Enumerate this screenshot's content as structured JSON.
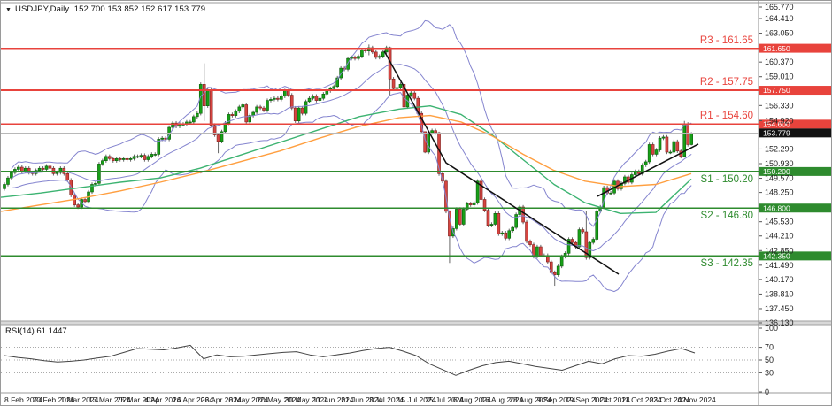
{
  "info_bar": {
    "arrow": "▼",
    "symbol": "USDJPY,Daily",
    "ohlc": "152.700 153.852 152.617 153.779"
  },
  "colors": {
    "bull": "#17a017",
    "bull_border": "#0a5c0a",
    "bear": "#d64541",
    "bear_border": "#7e1f1c",
    "wick": "#666666",
    "bollinger": "#8585cf",
    "ma_fast": "#3cb371",
    "ma_slow": "#ff9f40",
    "resistance": "#e8433c",
    "support": "#2e8b2e",
    "trendline": "#111111",
    "current_price_line": "#b8b8b8",
    "current_price_badge": "#111111",
    "rsi_line": "#444444",
    "axis_text": "#222222"
  },
  "chart_data": {
    "type": "candlestick",
    "symbol": "USDJPY",
    "timeframe": "Daily",
    "last_ohlc": {
      "open": 152.7,
      "high": 153.852,
      "low": 152.617,
      "close": 153.779
    },
    "current_price": {
      "value": 153.779,
      "axis_label": "153.779"
    },
    "price_axis": {
      "visible_range": [
        136.13,
        165.77
      ],
      "ticks": [
        "165.770",
        "164.410",
        "163.050",
        "160.370",
        "159.010",
        "156.330",
        "154.920",
        "152.290",
        "150.930",
        "149.570",
        "148.250",
        "145.530",
        "144.210",
        "142.850",
        "141.490",
        "140.170",
        "138.810",
        "137.450",
        "136.130"
      ]
    },
    "time_axis": {
      "labels": [
        "8 Feb 2024",
        "20 Feb 2024",
        "1 Mar 2024",
        "13 Mar 2024",
        "25 Mar 2024",
        "4 Apr 2024",
        "16 Apr 2024",
        "26 Apr 2024",
        "8 May 2024",
        "20 May 2024",
        "30 May 2024",
        "11 Jun 2024",
        "21 Jun 2024",
        "3 Jul 2024",
        "15 Jul 2024",
        "25 Jul 2024",
        "6 Aug 2024",
        "16 Aug 2024",
        "28 Aug 2024",
        "9 Sep 2024",
        "19 Sep 2024",
        "1 Oct 2024",
        "11 Oct 2024",
        "23 Oct 2024",
        "4 Nov 2024"
      ]
    },
    "levels": [
      {
        "id": "R3",
        "kind": "resistance",
        "label": "R3 - 161.65",
        "price": 161.65,
        "axis_label": "161.650"
      },
      {
        "id": "R2",
        "kind": "resistance",
        "label": "R2 - 157.75",
        "price": 157.75,
        "axis_label": "157.750"
      },
      {
        "id": "R1",
        "kind": "resistance",
        "label": "R1 - 154.60",
        "price": 154.6,
        "axis_label": "154.600"
      },
      {
        "id": "S1",
        "kind": "support",
        "label": "S1 - 150.20",
        "price": 150.2,
        "axis_label": "150.200"
      },
      {
        "id": "S2",
        "kind": "support",
        "label": "S2 - 146.80",
        "price": 146.8,
        "axis_label": "146.800"
      },
      {
        "id": "S3",
        "kind": "support",
        "label": "S3 - 142.35",
        "price": 142.35,
        "axis_label": "142.350"
      }
    ],
    "candles": {
      "first_open": 148.6,
      "default_wick": 0.18,
      "closes": [
        149.0,
        149.6,
        150.1,
        150.4,
        150.6,
        150.2,
        150.5,
        150.1,
        150.0,
        150.3,
        150.5,
        150.4,
        150.7,
        150.5,
        150.0,
        150.1,
        150.5,
        150.0,
        149.4,
        148.0,
        147.1,
        146.9,
        147.6,
        147.4,
        148.3,
        149.0,
        149.1,
        150.9,
        151.2,
        151.6,
        151.4,
        151.2,
        151.4,
        151.3,
        151.4,
        151.3,
        151.4,
        151.6,
        151.6,
        151.7,
        151.3,
        151.6,
        151.8,
        151.8,
        153.2,
        153.3,
        153.2,
        154.3,
        154.7,
        154.4,
        154.6,
        154.6,
        154.8,
        154.8,
        155.3,
        155.6,
        158.3,
        156.3,
        157.8,
        154.5,
        153.6,
        153.0,
        153.9,
        154.7,
        155.5,
        155.4,
        155.8,
        156.2,
        156.4,
        154.8,
        155.4,
        155.7,
        156.2,
        156.1,
        155.9,
        156.8,
        156.9,
        157.0,
        156.9,
        157.2,
        157.7,
        157.3,
        156.1,
        154.9,
        156.1,
        155.6,
        156.7,
        157.0,
        157.2,
        156.8,
        157.0,
        157.4,
        157.7,
        157.9,
        158.1,
        158.9,
        159.8,
        159.7,
        160.7,
        160.8,
        160.7,
        160.9,
        161.5,
        161.4,
        161.7,
        161.3,
        160.8,
        160.9,
        161.3,
        161.7,
        158.8,
        157.9,
        158.0,
        158.3,
        156.2,
        157.3,
        157.5,
        157.0,
        155.6,
        153.9,
        152.0,
        153.8,
        154.0,
        153.8,
        150.0,
        149.3,
        146.5,
        144.2,
        144.9,
        146.7,
        145.3,
        146.7,
        147.2,
        147.1,
        147.3,
        149.3,
        147.6,
        146.6,
        145.2,
        145.3,
        146.3,
        144.4,
        144.5,
        144.0,
        144.7,
        145.0,
        146.2,
        146.9,
        145.5,
        143.7,
        143.4,
        142.3,
        143.2,
        142.4,
        142.4,
        141.8,
        140.8,
        140.6,
        141.4,
        142.3,
        142.6,
        143.9,
        143.6,
        143.2,
        144.8,
        144.6,
        142.2,
        143.6,
        143.9,
        146.5,
        146.9,
        148.7,
        148.2,
        148.2,
        149.3,
        148.6,
        149.1,
        149.7,
        149.2,
        149.9,
        150.2,
        150.0,
        150.8,
        151.1,
        152.7,
        151.8,
        152.2,
        153.3,
        153.4,
        152.0,
        152.0,
        152.98,
        152.1,
        151.6,
        154.6,
        152.7,
        153.78
      ],
      "wick_overrides": {
        "57": [
          160.25,
          154.9
        ],
        "61": [
          153.7,
          151.9
        ],
        "104": [
          162.0,
          161.0
        ],
        "110": [
          161.8,
          157.3
        ],
        "120": [
          153.9,
          151.9
        ],
        "124": [
          153.9,
          149.8
        ],
        "127": [
          146.6,
          141.7
        ],
        "157": [
          141.0,
          139.58
        ],
        "166": [
          146.5,
          142.0
        ],
        "194": [
          154.9,
          151.5
        ],
        "196": [
          153.85,
          152.62
        ]
      }
    },
    "overlays": {
      "bollinger": {
        "period": 20,
        "deviation": 2
      },
      "ma_fast": {
        "points": [
          [
            0,
            147.8
          ],
          [
            45,
            148.2
          ],
          [
            90,
            148.7
          ],
          [
            135,
            149.2
          ],
          [
            180,
            149.6
          ],
          [
            225,
            150.5
          ],
          [
            270,
            151.7
          ],
          [
            315,
            152.9
          ],
          [
            360,
            154.1
          ],
          [
            405,
            155.3
          ],
          [
            450,
            156.0
          ],
          [
            485,
            156.3
          ],
          [
            520,
            155.5
          ],
          [
            555,
            153.6
          ],
          [
            590,
            151.3
          ],
          [
            625,
            149.0
          ],
          [
            660,
            147.3
          ],
          [
            700,
            146.3
          ],
          [
            740,
            146.4
          ],
          [
            780,
            149.5
          ]
        ]
      },
      "ma_slow": {
        "points": [
          [
            0,
            146.5
          ],
          [
            45,
            147.1
          ],
          [
            90,
            147.7
          ],
          [
            135,
            148.4
          ],
          [
            180,
            149.2
          ],
          [
            225,
            150.1
          ],
          [
            270,
            151.1
          ],
          [
            315,
            152.1
          ],
          [
            360,
            153.3
          ],
          [
            405,
            154.4
          ],
          [
            450,
            155.2
          ],
          [
            485,
            155.4
          ],
          [
            520,
            154.8
          ],
          [
            555,
            153.5
          ],
          [
            590,
            151.8
          ],
          [
            625,
            150.3
          ],
          [
            660,
            149.3
          ],
          [
            700,
            148.8
          ],
          [
            740,
            149.0
          ],
          [
            780,
            150.0
          ]
        ]
      }
    },
    "trendlines": [
      {
        "id": "descending",
        "points": [
          [
            433,
            161.4
          ],
          [
            503,
            151.0
          ],
          [
            698,
            140.65
          ]
        ]
      },
      {
        "id": "ascending",
        "points": [
          [
            674,
            147.9
          ],
          [
            788,
            152.75
          ]
        ]
      }
    ],
    "rsi": {
      "label": "RSI(14) 61.1447",
      "period": 14,
      "value": 61.1447,
      "range": [
        0,
        100
      ],
      "ticks": [
        100,
        70,
        50,
        30,
        0
      ],
      "dotted_levels": [
        70,
        50,
        30
      ],
      "x_step": 15,
      "values": [
        57,
        54,
        52,
        49,
        47,
        48,
        50,
        53,
        56,
        62,
        68,
        67,
        66,
        69,
        73,
        52,
        58,
        55,
        56,
        58,
        60,
        62,
        63,
        58,
        55,
        58,
        61,
        65,
        68,
        70,
        64,
        57,
        44,
        35,
        26,
        34,
        41,
        46,
        48,
        44,
        40,
        37,
        34,
        41,
        48,
        44,
        52,
        57,
        56,
        59,
        64,
        68,
        61.1
      ]
    }
  }
}
